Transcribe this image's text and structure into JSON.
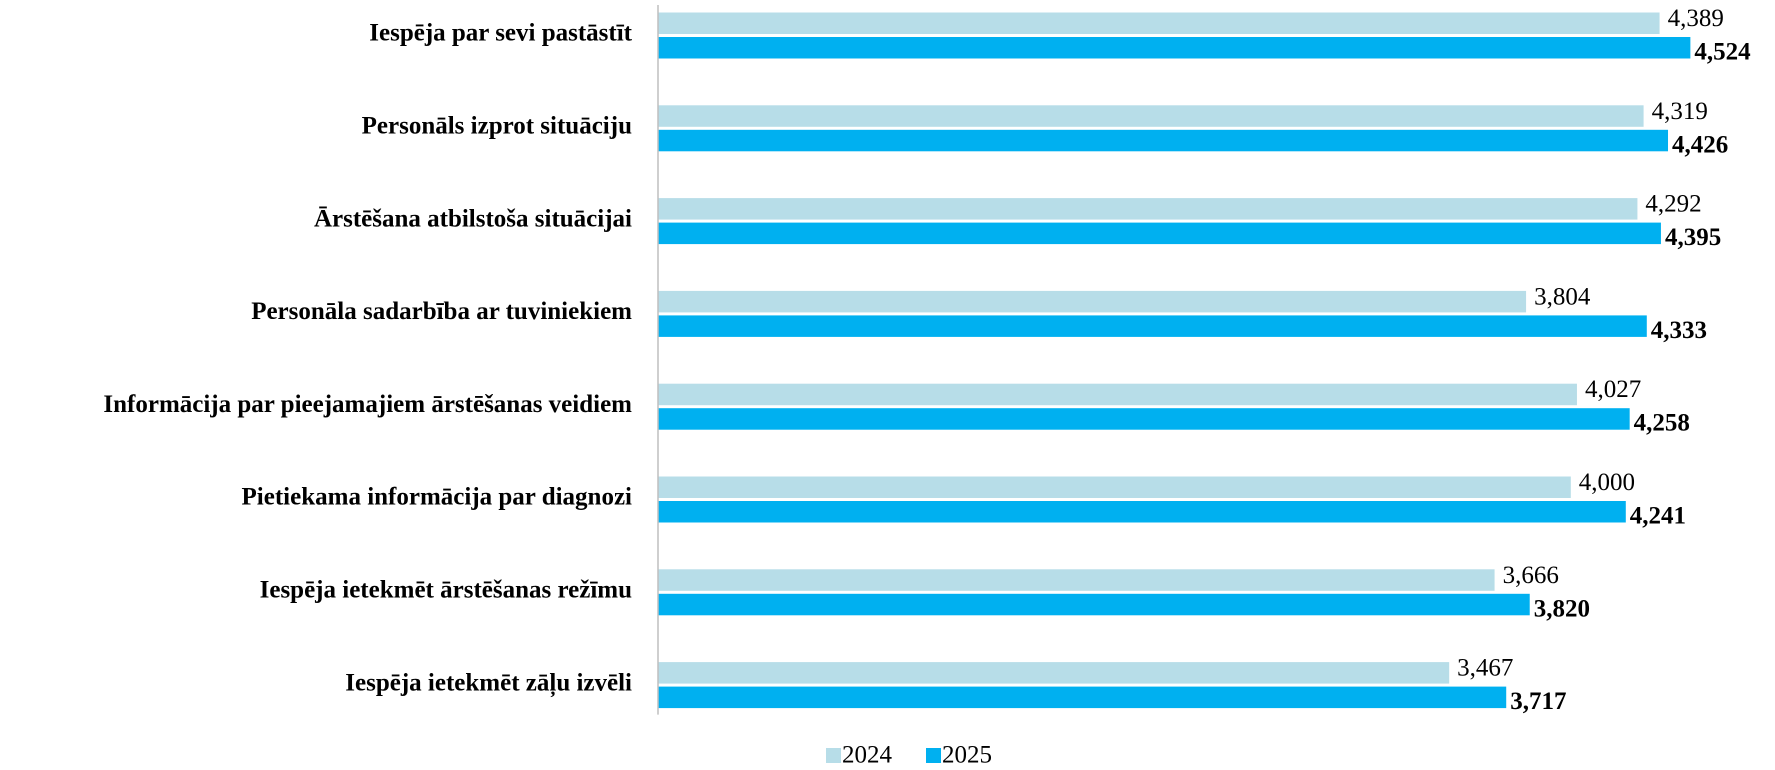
{
  "chart_data": {
    "type": "bar",
    "orientation": "horizontal",
    "categories": [
      "Iespēja par sevi pastāstīt",
      "Personāls izprot situāciju",
      "Ārstēšana atbilstoša situācijai",
      "Personāla sadarbība ar tuviniekiem",
      "Informācija par pieejamajiem ārstēšanas veidiem",
      "Pietiekama informācija par diagnozi",
      "Iespēja ietekmēt ārstēšanas režīmu",
      "Iespēja ietekmēt zāļu izvēli"
    ],
    "series": [
      {
        "name": "2024",
        "color": "#b7dde8",
        "values": [
          4.389,
          4.319,
          4.292,
          3.804,
          4.027,
          4.0,
          3.666,
          3.467
        ],
        "value_labels": [
          "4,389",
          "4,319",
          "4,292",
          "3,804",
          "4,027",
          "4,000",
          "3,666",
          "3,467"
        ]
      },
      {
        "name": "2025",
        "color": "#00b0f0",
        "values": [
          4.524,
          4.426,
          4.395,
          4.333,
          4.258,
          4.241,
          3.82,
          3.717
        ],
        "value_labels": [
          "4,524",
          "4,426",
          "4,395",
          "4,333",
          "4,258",
          "4,241",
          "3,820",
          "3,717"
        ]
      }
    ],
    "xlim": [
      0,
      5
    ],
    "legend": "bottom"
  }
}
